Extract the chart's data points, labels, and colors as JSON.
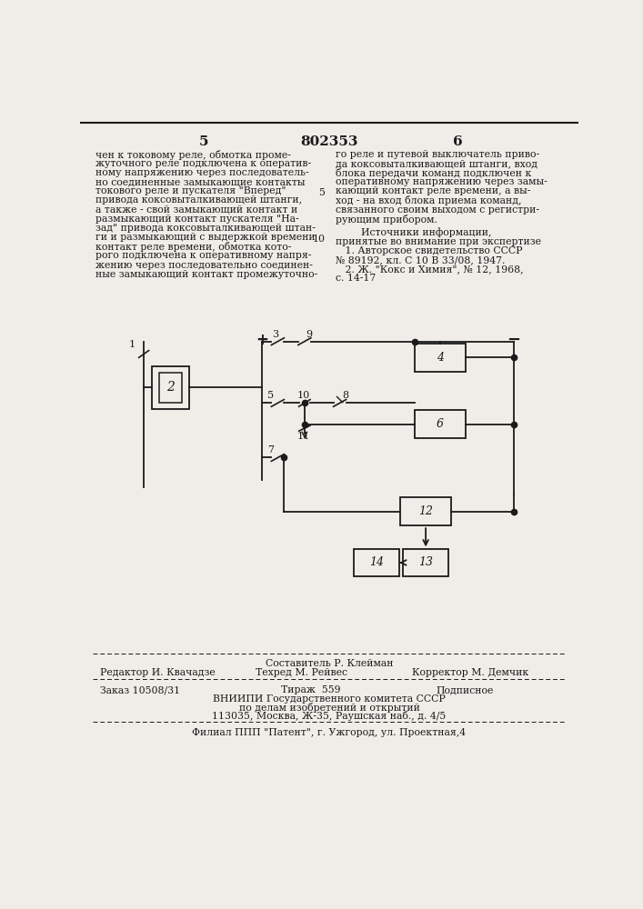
{
  "page_num_left": "5",
  "page_num_center": "802353",
  "page_num_right": "6",
  "col_left_text": [
    "чен к токовому реле, обмотка проме-",
    "жуточного реле подключена к оператив-",
    "ному напряжению через последователь-",
    "но соединенные замыкающие контакты",
    "токового реле и пускателя \"Вперед\"",
    "привода коксовыталкивающей штанги,",
    "а также - свой замыкающий контакт и",
    "размыкающий контакт пускателя \"На-",
    "зад\" привода коксовыталкивающей штан-",
    "ги и размыкающий с выдержкой времени",
    "контакт реле времени, обмотка кото-",
    "рого подключена к оперативному напря-",
    "жению через последовательно соединен-",
    "ные замыкающий контакт промежуточно-"
  ],
  "col_right_text": [
    "го реле и путевой выключатель приво-",
    "да коксовыталкивающей штанги, вход",
    "блока передачи команд подключен к",
    "оперативному напряжению через замы-",
    "кающий контакт реле времени, а вы-",
    "ход - на вход блока приема команд,",
    "связанного своим выходом с регистри-",
    "рующим прибором."
  ],
  "sources_header": "        Источники информации,",
  "sources_sub": "принятые во внимание при экспертизе",
  "source1": "   1. Авторское свидетельство СССР",
  "source2": "№ 89192, кл. С 10 В 33/08, 1947.",
  "source3": "   2. Ж. \"Кокс и Химия\", № 12, 1968,",
  "source4": "с. 14-17",
  "num5": "5",
  "num10": "10",
  "footer_author": "Составитель Р. Клейман",
  "footer_editor": "Редактор И. Квачадзе",
  "footer_tech": "Техред М. Рейвес",
  "footer_corrector": "Корректор М. Демчик",
  "footer_order": "Заказ 10508/31",
  "footer_print": "Тираж  559",
  "footer_type": "Подписное",
  "footer_vniip": "ВНИИПИ Государственного комитета СССР",
  "footer_affairs": "по делам изобретений и открытий",
  "footer_address": "113035, Москва, Ж-35, Раушская наб., д. 4/5",
  "footer_patent": "Филиал ППП \"Патент\", г. Ужгород, ул. Проектная,4",
  "bg_color": "#f0ede8",
  "text_color": "#1a1a1a",
  "line_color": "#1a1a1a"
}
